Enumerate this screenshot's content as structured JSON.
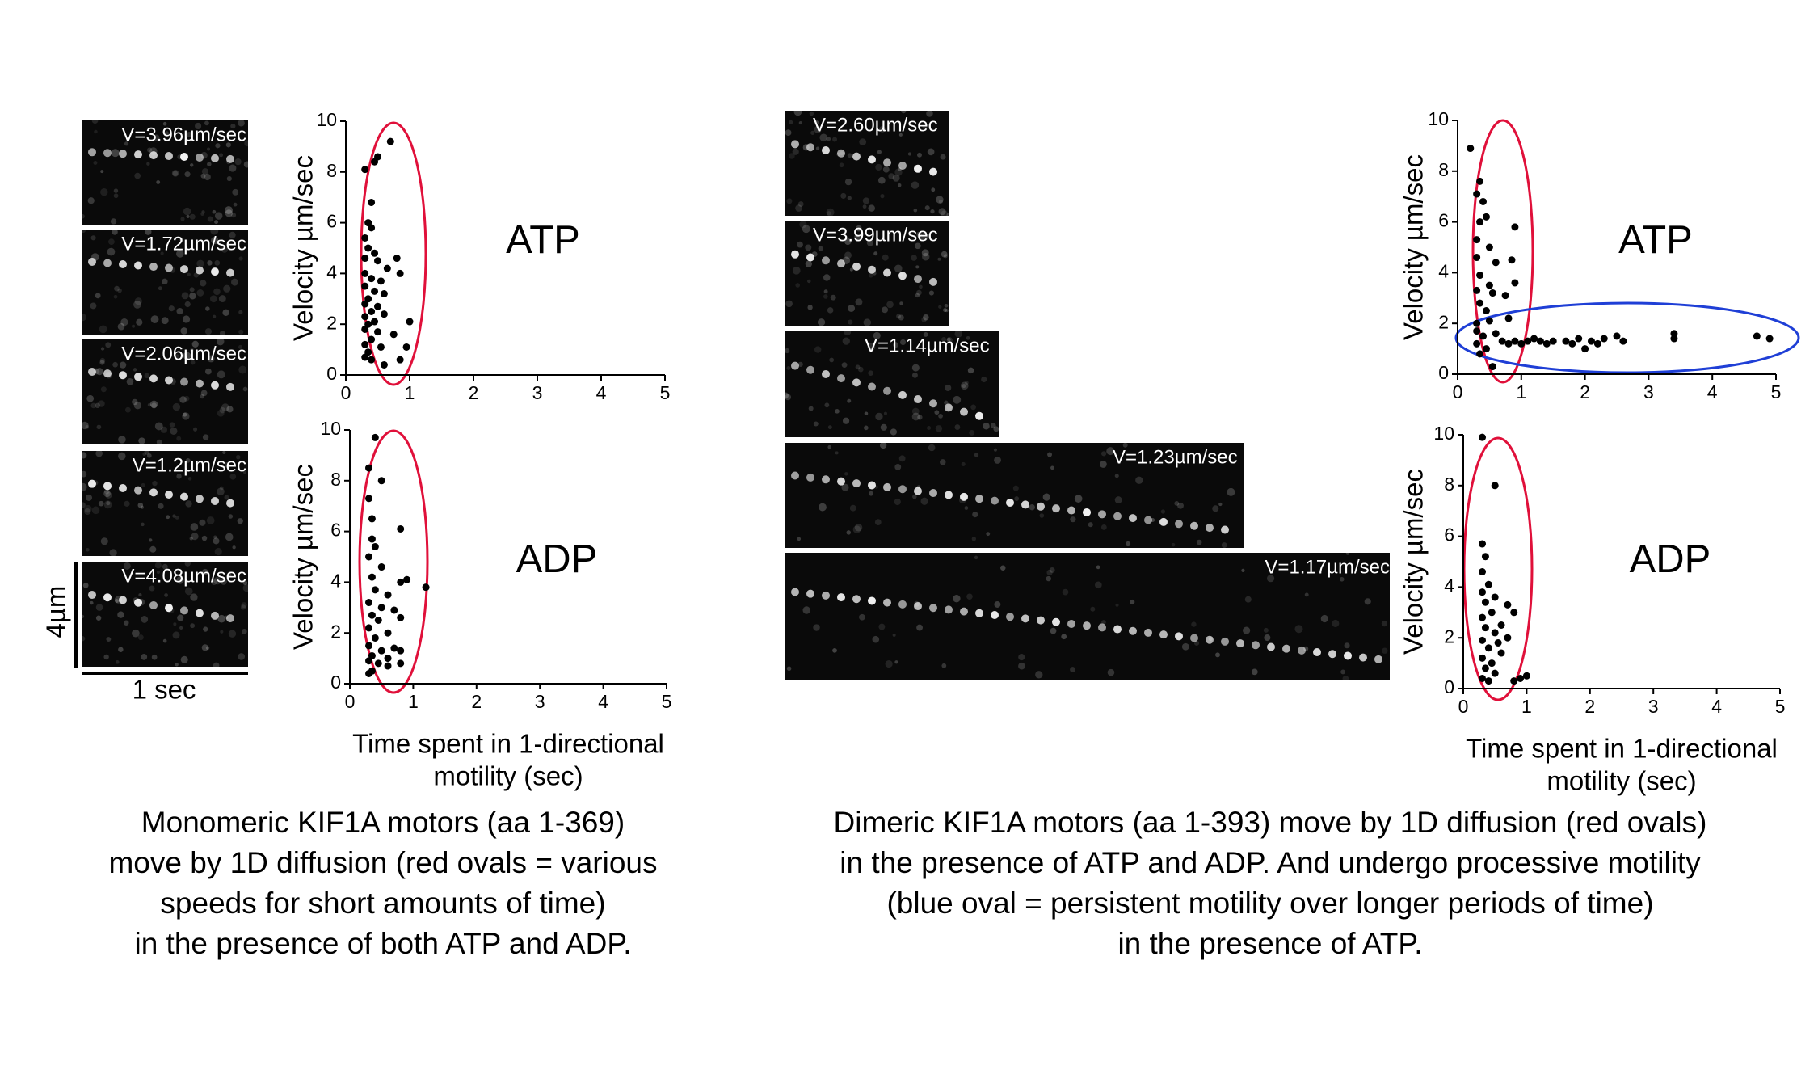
{
  "chart_data": [
    {
      "type": "scatter",
      "title": "ATP",
      "y_label": "Velocity µm/sec",
      "xlim": [
        0,
        5
      ],
      "ylim": [
        0,
        10
      ],
      "xticks": [
        0,
        1,
        2,
        3,
        4,
        5
      ],
      "yticks": [
        0,
        2,
        4,
        6,
        8,
        10
      ],
      "color": "#000000",
      "x": [
        0.3,
        0.45,
        0.5,
        0.7,
        0.4,
        0.35,
        0.4,
        0.3,
        0.35,
        0.45,
        0.3,
        0.5,
        0.8,
        0.65,
        0.85,
        0.3,
        0.4,
        0.55,
        0.3,
        0.45,
        0.6,
        0.35,
        0.3,
        0.5,
        0.4,
        0.3,
        0.6,
        0.45,
        0.35,
        1.0,
        0.3,
        0.5,
        0.75,
        0.4,
        0.3,
        0.55,
        0.35,
        0.3,
        0.95,
        0.6,
        0.85,
        0.4
      ],
      "values": [
        8.1,
        8.4,
        8.6,
        9.2,
        6.8,
        6.0,
        5.8,
        5.4,
        5.0,
        4.8,
        4.6,
        4.5,
        4.6,
        4.2,
        4.0,
        4.0,
        3.8,
        3.7,
        3.5,
        3.3,
        3.2,
        3.0,
        2.8,
        2.7,
        2.5,
        2.3,
        2.4,
        2.1,
        2.0,
        2.1,
        1.8,
        1.7,
        1.6,
        1.4,
        1.2,
        1.1,
        0.9,
        0.7,
        1.1,
        0.4,
        0.6,
        0.6
      ]
    },
    {
      "type": "scatter",
      "title": "ADP",
      "y_label": "Velocity µm/sec",
      "x_label": [
        "Time spent in 1-directional",
        "motility (sec)"
      ],
      "xlim": [
        0,
        5
      ],
      "ylim": [
        0,
        10
      ],
      "xticks": [
        0,
        1,
        2,
        3,
        4,
        5
      ],
      "yticks": [
        0,
        2,
        4,
        6,
        8,
        10
      ],
      "color": "#000000",
      "x": [
        0.4,
        0.3,
        0.5,
        0.3,
        0.35,
        0.8,
        0.35,
        0.4,
        0.3,
        0.5,
        0.9,
        0.8,
        1.2,
        0.35,
        0.4,
        0.6,
        0.3,
        0.5,
        0.7,
        0.35,
        0.8,
        0.45,
        0.3,
        0.6,
        0.4,
        0.3,
        0.7,
        0.8,
        0.5,
        0.35,
        0.3,
        0.45,
        0.6,
        0.35,
        0.3,
        0.8,
        0.6
      ],
      "values": [
        9.7,
        8.5,
        8.0,
        7.3,
        6.5,
        6.1,
        5.7,
        5.4,
        5.0,
        4.6,
        4.1,
        4.0,
        3.8,
        4.2,
        3.7,
        3.5,
        3.2,
        3.0,
        2.9,
        2.7,
        2.6,
        2.5,
        2.2,
        2.0,
        1.8,
        1.5,
        1.4,
        1.3,
        1.3,
        1.1,
        0.9,
        0.8,
        0.7,
        0.5,
        0.4,
        0.8,
        1.0
      ]
    },
    {
      "type": "scatter",
      "title": "ATP",
      "y_label": "Velocity µm/sec",
      "xlim": [
        0,
        5
      ],
      "ylim": [
        0,
        10
      ],
      "xticks": [
        0,
        1,
        2,
        3,
        4,
        5
      ],
      "yticks": [
        0,
        2,
        4,
        6,
        8,
        10
      ],
      "color": "#000000",
      "x": [
        0.2,
        0.35,
        0.3,
        0.4,
        0.35,
        0.45,
        0.9,
        0.3,
        0.5,
        0.3,
        0.6,
        0.85,
        0.35,
        0.5,
        0.9,
        0.3,
        0.55,
        0.75,
        0.35,
        0.45,
        0.8,
        0.3,
        0.5,
        0.3,
        0.4,
        0.6,
        0.3,
        0.45,
        0.55,
        0.35,
        0.7,
        0.8,
        0.9,
        1.0,
        1.1,
        1.2,
        1.3,
        1.4,
        1.5,
        1.7,
        1.8,
        1.9,
        2.0,
        2.1,
        2.2,
        2.3,
        2.5,
        2.6,
        3.4,
        3.4,
        4.7,
        4.9
      ],
      "values": [
        8.9,
        7.6,
        7.1,
        6.8,
        6.0,
        6.2,
        5.8,
        5.3,
        5.0,
        4.6,
        4.4,
        4.5,
        3.9,
        3.5,
        3.6,
        3.3,
        3.2,
        3.1,
        2.8,
        2.5,
        2.2,
        2.0,
        2.1,
        1.7,
        1.5,
        1.6,
        1.2,
        1.0,
        0.3,
        0.8,
        1.3,
        1.2,
        1.3,
        1.2,
        1.3,
        1.4,
        1.3,
        1.2,
        1.3,
        1.3,
        1.2,
        1.4,
        1.0,
        1.3,
        1.2,
        1.4,
        1.5,
        1.3,
        1.4,
        1.6,
        1.5,
        1.4
      ]
    },
    {
      "type": "scatter",
      "title": "ADP",
      "y_label": "Velocity µm/sec",
      "x_label": [
        "Time spent in 1-directional",
        "motility (sec)"
      ],
      "xlim": [
        0,
        5
      ],
      "ylim": [
        0,
        10
      ],
      "xticks": [
        0,
        1,
        2,
        3,
        4,
        5
      ],
      "yticks": [
        0,
        2,
        4,
        6,
        8,
        10
      ],
      "color": "#000000",
      "x": [
        0.3,
        0.5,
        0.3,
        0.35,
        0.3,
        0.4,
        0.3,
        0.5,
        0.7,
        0.8,
        0.35,
        0.45,
        0.3,
        0.6,
        0.35,
        0.5,
        0.7,
        0.3,
        0.4,
        0.6,
        0.3,
        0.45,
        0.35,
        0.5,
        0.3,
        0.4,
        0.8,
        0.9,
        1.0,
        0.55
      ],
      "values": [
        9.9,
        8.0,
        5.7,
        5.2,
        4.6,
        4.1,
        3.8,
        3.6,
        3.3,
        3.0,
        3.4,
        3.0,
        2.8,
        2.5,
        2.4,
        2.2,
        2.0,
        1.9,
        1.6,
        1.4,
        1.2,
        1.0,
        0.8,
        0.6,
        0.4,
        0.3,
        0.3,
        0.4,
        0.5,
        1.8
      ]
    }
  ],
  "monomer_kymographs": [
    "V=3.96µm/sec",
    "V=1.72µm/sec",
    "V=2.06µm/sec",
    "V=1.2µm/sec",
    "V=4.08µm/sec"
  ],
  "dimer_kymographs": [
    "V=2.60µm/sec",
    "V=3.99µm/sec",
    "V=1.14µm/sec",
    "V=1.23µm/sec",
    "V=1.17µm/sec"
  ],
  "scale_bar": {
    "length": "4µm",
    "time": "1 sec"
  },
  "captions": {
    "monomer": [
      "Monomeric KIF1A motors (aa 1-369)",
      "move by 1D diffusion (red ovals = various",
      "speeds for short amounts of time)",
      "in the presence of both ATP and ADP."
    ],
    "dimer": [
      "Dimeric KIF1A motors (aa 1-393) move by 1D diffusion (red ovals)",
      "in the presence of ATP and ADP.  And undergo processive motility",
      "(blue oval = persistent motility over longer periods of time)",
      "in the presence of ATP."
    ]
  }
}
